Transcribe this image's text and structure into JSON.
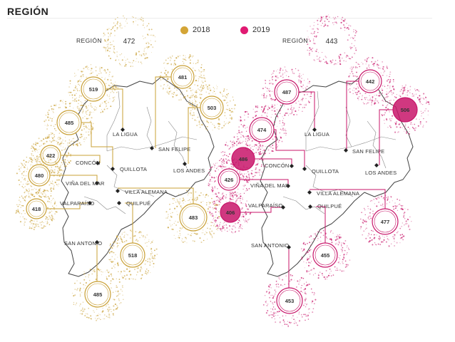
{
  "title": "REGIÓN",
  "legend": [
    {
      "label": "2018",
      "color": "#d4a536"
    },
    {
      "label": "2019",
      "color": "#e01a72"
    }
  ],
  "panels": [
    {
      "year": "2018",
      "color": "#c9a035",
      "region_label": "REGIÓN",
      "region_value": "472",
      "cities": [
        {
          "name": "LA LIGUA",
          "value": "519"
        },
        {
          "name": "SAN FELIPE",
          "value": "481"
        },
        {
          "name": "LOS ANDES",
          "value": "503"
        },
        {
          "name": "QUILLOTA",
          "value": "485"
        },
        {
          "name": "CONCÓN",
          "value": "422"
        },
        {
          "name": "VIÑA DEL MAR",
          "value": "480"
        },
        {
          "name": "VALPARAÍSO",
          "value": "418"
        },
        {
          "name": "VILLA ALEMANA",
          "value": "483"
        },
        {
          "name": "QUILPUÉ",
          "value": "518"
        },
        {
          "name": "SAN ANTONIO",
          "value": "485"
        }
      ]
    },
    {
      "year": "2019",
      "color": "#c8156a",
      "region_label": "REGIÓN",
      "region_value": "443",
      "cities": [
        {
          "name": "LA LIGUA",
          "value": "487"
        },
        {
          "name": "SAN FELIPE",
          "value": "442"
        },
        {
          "name": "LOS ANDES",
          "value": "506"
        },
        {
          "name": "QUILLOTA",
          "value": "474"
        },
        {
          "name": "CONCÓN",
          "value": "486"
        },
        {
          "name": "VIÑA DEL MAR",
          "value": "426"
        },
        {
          "name": "VALPARAÍSO",
          "value": "406"
        },
        {
          "name": "VILLA ALEMANA",
          "value": "477"
        },
        {
          "name": "QUILPUÉ",
          "value": "455"
        },
        {
          "name": "SAN ANTONIO",
          "value": "453"
        }
      ]
    }
  ]
}
